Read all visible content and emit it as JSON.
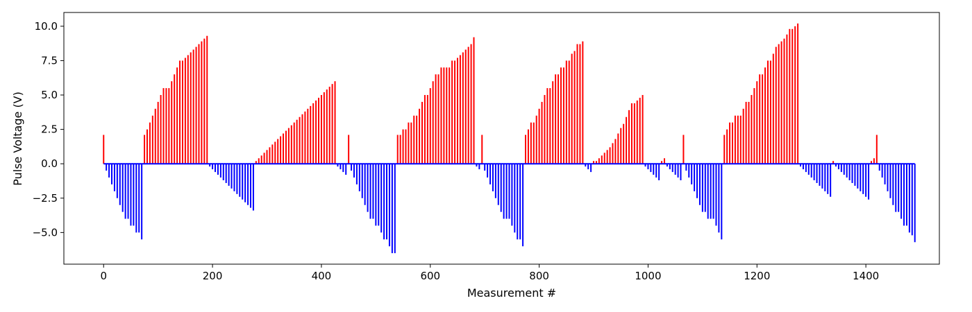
{
  "chart_data": {
    "type": "bar",
    "title": "",
    "xlabel": "Measurement #",
    "ylabel": "Pulse Voltage (V)",
    "xlim": [
      -73,
      1535
    ],
    "ylim": [
      -7.3,
      11.0
    ],
    "grid": false,
    "legend": "none",
    "colors": {
      "positive": "#ff0000",
      "negative": "#0000ff"
    },
    "x_ticks": [
      0,
      200,
      400,
      600,
      800,
      1000,
      1200,
      1400
    ],
    "x_tick_labels": [
      "0",
      "200",
      "400",
      "600",
      "800",
      "1000",
      "1200",
      "1400"
    ],
    "y_ticks": [
      -5.0,
      -2.5,
      0.0,
      2.5,
      5.0,
      7.5,
      10.0
    ],
    "y_tick_labels": [
      "−5.0",
      "−2.5",
      "0.0",
      "2.5",
      "5.0",
      "7.5",
      "10.0"
    ],
    "bar_step": 5,
    "series": [
      {
        "segment": 1,
        "x_start": 0,
        "values": [
          2.1
        ]
      },
      {
        "segment": 2,
        "x_start": 5,
        "values": [
          -0.5,
          -1.0,
          -1.5,
          -2.0,
          -2.5,
          -3.0,
          -3.5,
          -4.0,
          -4.0,
          -4.5,
          -4.5,
          -5.0,
          -5.0,
          -5.5
        ]
      },
      {
        "segment": 3,
        "x_start": 75,
        "values": [
          2.1,
          2.5,
          3.0,
          3.5,
          4.0,
          4.5,
          5.0,
          5.5,
          5.5,
          5.5,
          6.0,
          6.5,
          7.0,
          7.5,
          7.5,
          7.7,
          7.9,
          8.1,
          8.3,
          8.5,
          8.7,
          8.9,
          9.1,
          9.3
        ]
      },
      {
        "segment": 4,
        "x_start": 195,
        "values": [
          -0.2,
          -0.4,
          -0.6,
          -0.8,
          -1.0,
          -1.2,
          -1.4,
          -1.6,
          -1.8,
          -2.0,
          -2.2,
          -2.4,
          -2.6,
          -2.8,
          -3.0,
          -3.2,
          -3.4
        ]
      },
      {
        "segment": 5,
        "x_start": 280,
        "values": [
          0.2,
          0.4,
          0.6,
          0.8,
          1.0,
          1.2,
          1.4,
          1.6,
          1.8,
          2.0,
          2.2,
          2.4,
          2.6,
          2.8,
          3.0,
          3.2,
          3.4,
          3.6,
          3.8,
          4.0,
          4.2,
          4.4,
          4.6,
          4.8,
          5.0,
          5.2,
          5.4,
          5.6,
          5.8,
          6.0
        ]
      },
      {
        "segment": 6,
        "x_start": 430,
        "values": [
          -0.2,
          -0.4,
          -0.6,
          -0.8
        ]
      },
      {
        "segment": 7,
        "x_start": 450,
        "values": [
          2.1
        ]
      },
      {
        "segment": 8,
        "x_start": 455,
        "values": [
          -0.5,
          -1.0,
          -1.5,
          -2.0,
          -2.5,
          -3.0,
          -3.5,
          -4.0,
          -4.0,
          -4.5,
          -4.5,
          -5.0,
          -5.5,
          -5.5,
          -6.0,
          -6.5,
          -6.5
        ]
      },
      {
        "segment": 9,
        "x_start": 540,
        "values": [
          2.1,
          2.1,
          2.5,
          2.5,
          3.0,
          3.0,
          3.5,
          3.5,
          4.0,
          4.5,
          5.0,
          5.0,
          5.5,
          6.0,
          6.5,
          6.5,
          7.0,
          7.0,
          7.0,
          7.0,
          7.5,
          7.5,
          7.7,
          7.9,
          8.1,
          8.3,
          8.5,
          8.7,
          9.2
        ]
      },
      {
        "segment": 10,
        "x_start": 685,
        "values": [
          -0.2,
          -0.4
        ]
      },
      {
        "segment": 11,
        "x_start": 695,
        "values": [
          2.1
        ]
      },
      {
        "segment": 12,
        "x_start": 700,
        "values": [
          -0.5,
          -1.0,
          -1.5,
          -2.0,
          -2.5,
          -3.0,
          -3.5,
          -4.0,
          -4.0,
          -4.0,
          -4.5,
          -5.0,
          -5.5,
          -5.5,
          -6.0
        ]
      },
      {
        "segment": 13,
        "x_start": 775,
        "values": [
          2.1,
          2.5,
          3.0,
          3.0,
          3.5,
          4.0,
          4.5,
          5.0,
          5.5,
          5.5,
          6.0,
          6.5,
          6.5,
          7.0,
          7.0,
          7.5,
          7.5,
          8.0,
          8.2,
          8.7,
          8.7,
          8.9
        ]
      },
      {
        "segment": 14,
        "x_start": 885,
        "values": [
          -0.2,
          -0.4,
          -0.6
        ]
      },
      {
        "segment": 15,
        "x_start": 900,
        "values": [
          0.2,
          0.2,
          0.4,
          0.6,
          0.8,
          1.0,
          1.2,
          1.5,
          1.8,
          2.2,
          2.6,
          2.9,
          3.4,
          3.9,
          4.4,
          4.4,
          4.6,
          4.8,
          5.0
        ]
      },
      {
        "segment": 16,
        "x_start": 995,
        "values": [
          -0.2,
          -0.4,
          -0.6,
          -0.8,
          -1.0,
          -1.2
        ]
      },
      {
        "segment": 17,
        "x_start": 1025,
        "values": [
          0.2,
          0.4
        ]
      },
      {
        "segment": 18,
        "x_start": 1035,
        "values": [
          -0.2,
          -0.4,
          -0.6,
          -0.8,
          -1.0,
          -1.2
        ]
      },
      {
        "segment": 19,
        "x_start": 1065,
        "values": [
          2.1
        ]
      },
      {
        "segment": 20,
        "x_start": 1070,
        "values": [
          -0.5,
          -1.0,
          -1.5,
          -2.0,
          -2.5,
          -3.0,
          -3.5,
          -3.5,
          -4.0,
          -4.0,
          -4.0,
          -4.5,
          -5.0,
          -5.5
        ]
      },
      {
        "segment": 21,
        "x_start": 1140,
        "values": [
          2.1,
          2.5,
          3.0,
          3.0,
          3.5,
          3.5,
          3.5,
          4.0,
          4.5,
          4.5,
          5.0,
          5.5,
          6.0,
          6.5,
          6.5,
          7.0,
          7.5,
          7.5,
          8.0,
          8.5,
          8.7,
          8.9,
          9.1,
          9.4,
          9.8,
          9.8,
          10.0,
          10.2
        ]
      },
      {
        "segment": 22,
        "x_start": 1280,
        "values": [
          -0.2,
          -0.4,
          -0.6,
          -0.8,
          -1.0,
          -1.2,
          -1.4,
          -1.6,
          -1.8,
          -2.0,
          -2.2,
          -2.4
        ]
      },
      {
        "segment": 23,
        "x_start": 1340,
        "values": [
          0.2
        ]
      },
      {
        "segment": 24,
        "x_start": 1345,
        "values": [
          -0.2,
          -0.4,
          -0.6,
          -0.8,
          -1.0,
          -1.2,
          -1.4,
          -1.6,
          -1.8,
          -2.0,
          -2.2,
          -2.4,
          -2.6
        ]
      },
      {
        "segment": 25,
        "x_start": 1410,
        "values": [
          0.2,
          0.4,
          2.1
        ]
      },
      {
        "segment": 26,
        "x_start": 1425,
        "values": [
          -0.5,
          -1.0,
          -1.5,
          -2.0,
          -2.5,
          -3.0,
          -3.5,
          -3.5,
          -4.0,
          -4.5,
          -4.5,
          -5.0,
          -5.2,
          -5.7
        ]
      }
    ]
  }
}
